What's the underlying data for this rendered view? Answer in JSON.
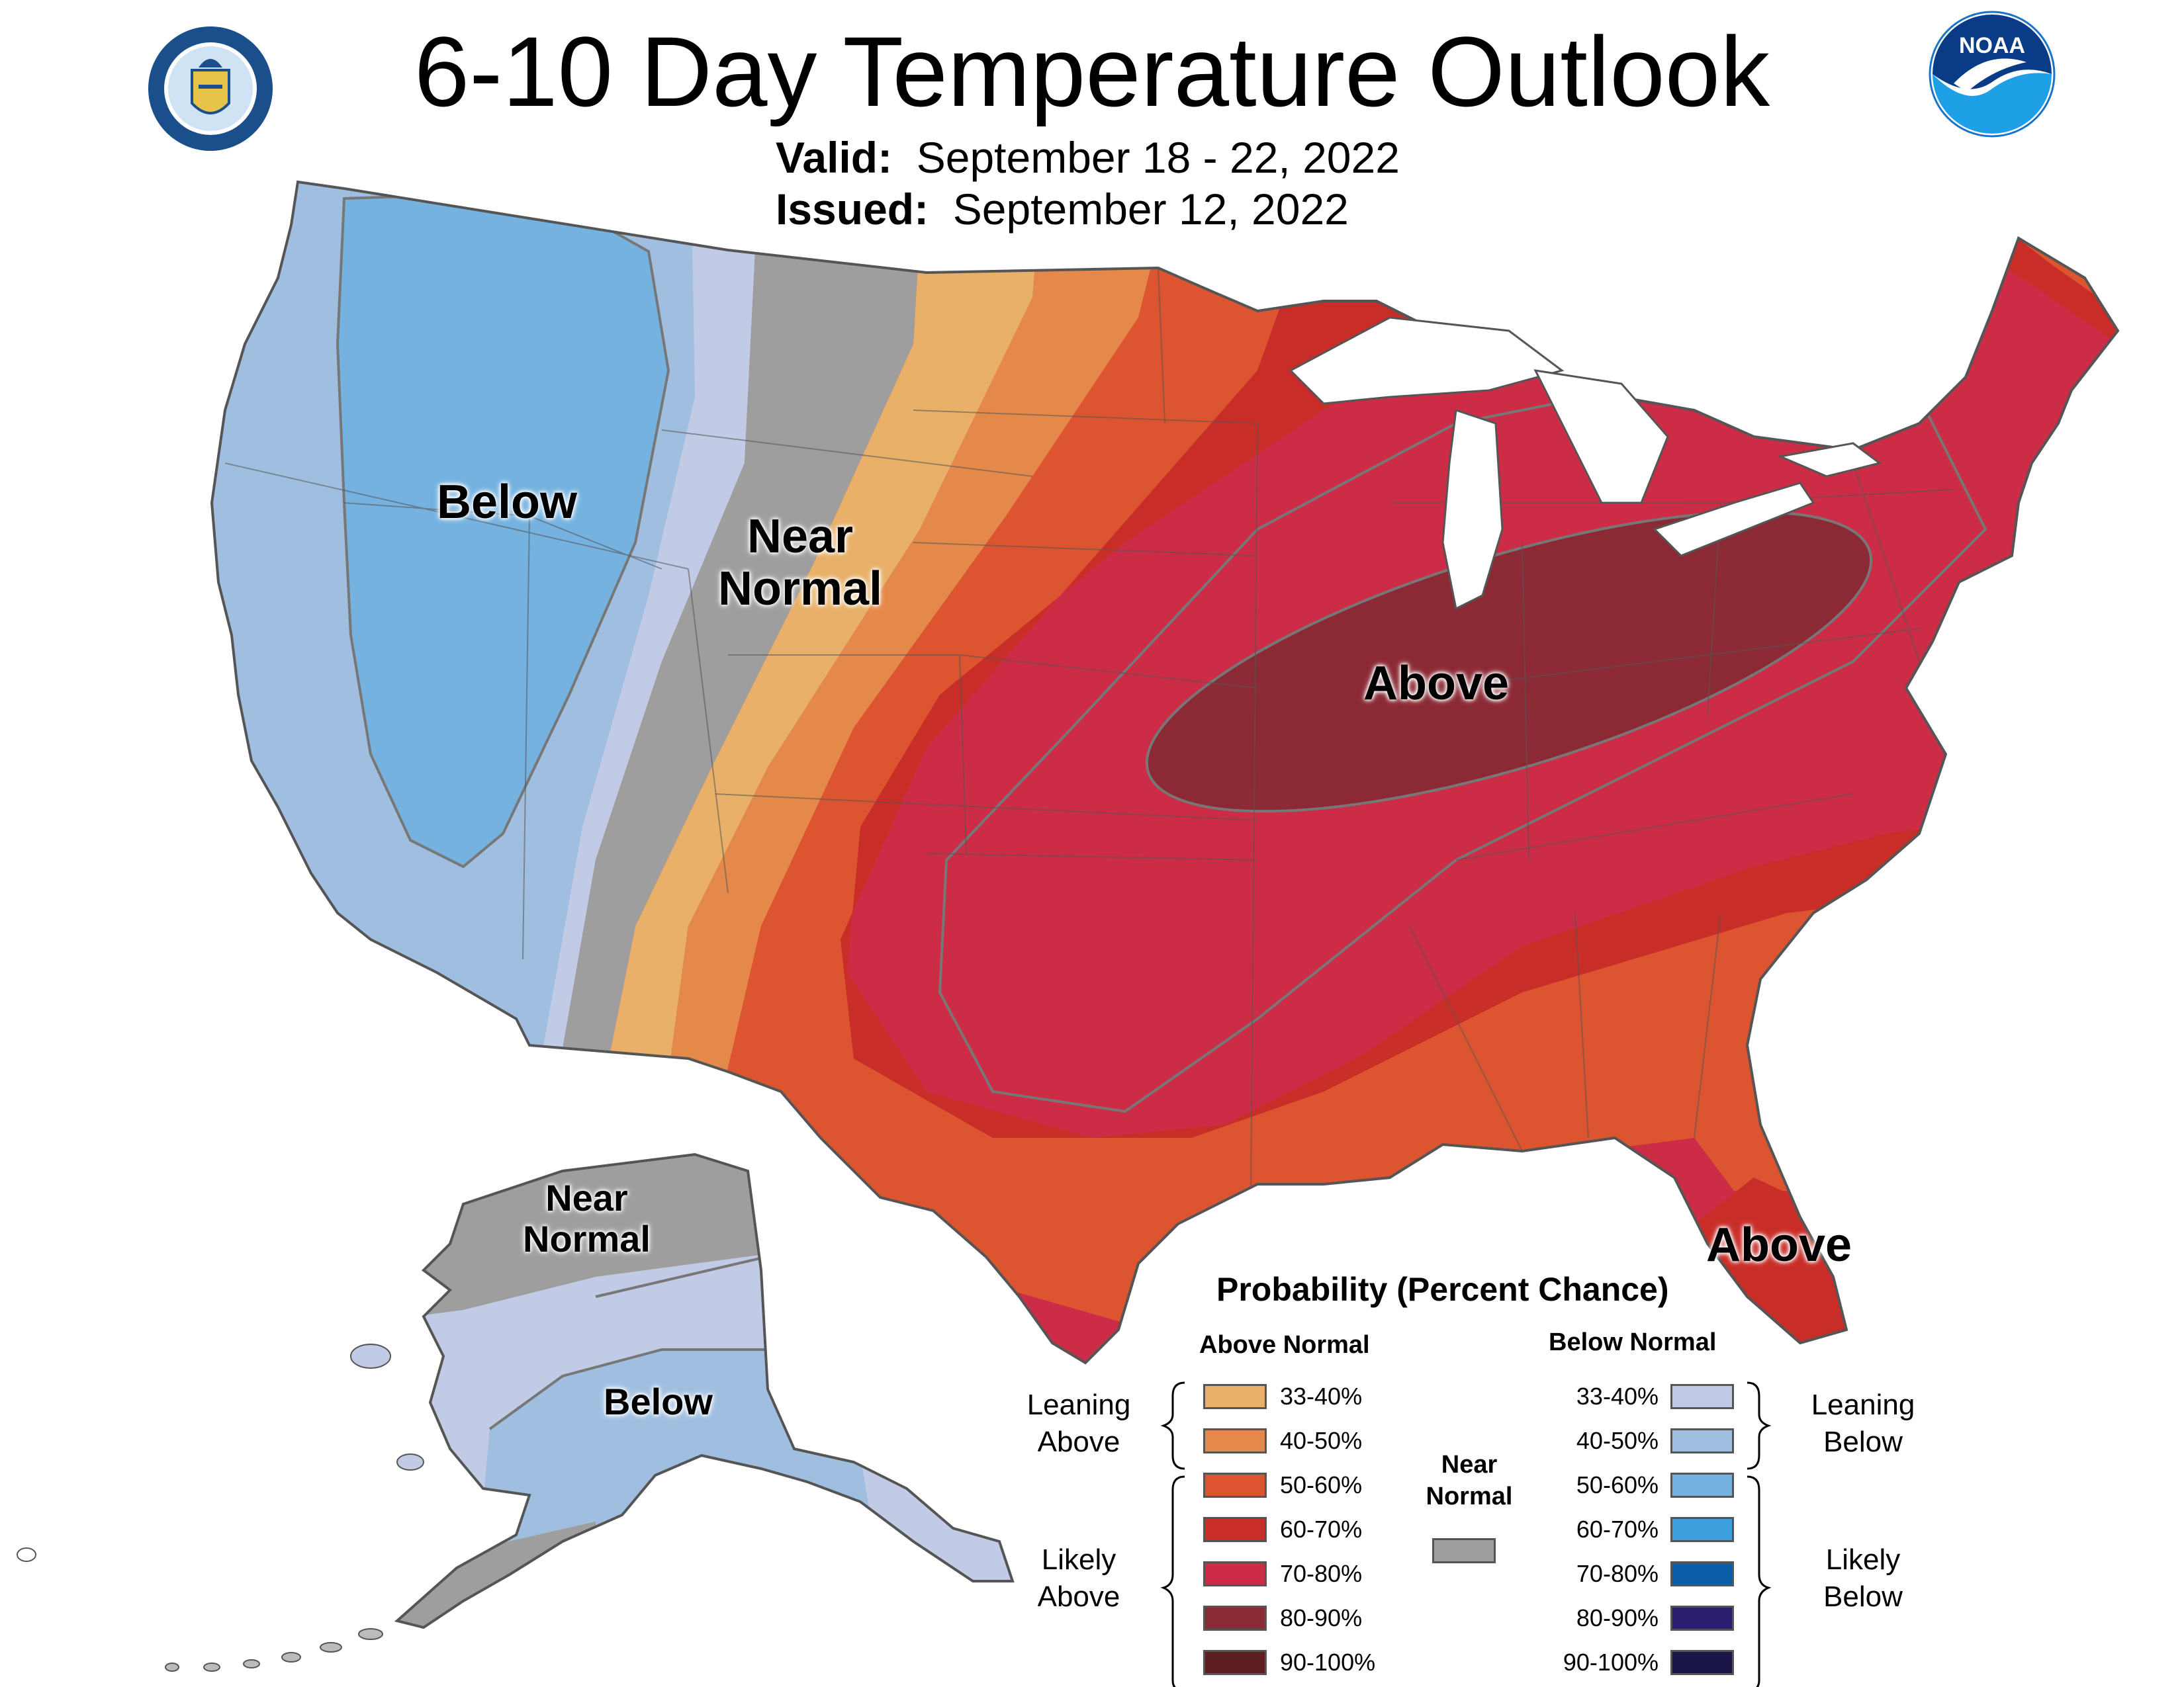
{
  "title": "6-10 Day Temperature Outlook",
  "valid_label": "Valid:",
  "valid_value": "September 18 - 22, 2022",
  "issued_label": "Issued:",
  "issued_value": "September 12, 2022",
  "logos": {
    "left": "department-of-commerce-seal",
    "right": "noaa-logo",
    "noaa_text": "NOAA"
  },
  "regions": {
    "conus_west": "Below",
    "conus_near_1": "Near",
    "conus_near_2": "Normal",
    "conus_midwest": "Above",
    "conus_florida": "Above",
    "alaska_near_1": "Near",
    "alaska_near_2": "Normal",
    "alaska_below": "Below"
  },
  "legend": {
    "title": "Probability (Percent Chance)",
    "above_header": "Above Normal",
    "below_header": "Below Normal",
    "leaning_above_1": "Leaning",
    "leaning_above_2": "Above",
    "likely_above_1": "Likely",
    "likely_above_2": "Above",
    "leaning_below_1": "Leaning",
    "leaning_below_2": "Below",
    "likely_below_1": "Likely",
    "likely_below_2": "Below",
    "near_1": "Near",
    "near_2": "Normal",
    "near_color": "#9e9e9e",
    "above": [
      {
        "label": "33-40%",
        "color": "#e8b068"
      },
      {
        "label": "40-50%",
        "color": "#e5894a"
      },
      {
        "label": "50-60%",
        "color": "#dc5530"
      },
      {
        "label": "60-70%",
        "color": "#c92d28"
      },
      {
        "label": "70-80%",
        "color": "#cd2c46"
      },
      {
        "label": "80-90%",
        "color": "#8b2a35"
      },
      {
        "label": "90-100%",
        "color": "#5e1e22"
      }
    ],
    "below": [
      {
        "label": "33-40%",
        "color": "#c2cbe6"
      },
      {
        "label": "40-50%",
        "color": "#a0bfe0"
      },
      {
        "label": "50-60%",
        "color": "#75b2e0"
      },
      {
        "label": "60-70%",
        "color": "#3e9fdf"
      },
      {
        "label": "70-80%",
        "color": "#0a5fa8"
      },
      {
        "label": "80-90%",
        "color": "#2c1e6e"
      },
      {
        "label": "90-100%",
        "color": "#1a1648"
      }
    ]
  }
}
